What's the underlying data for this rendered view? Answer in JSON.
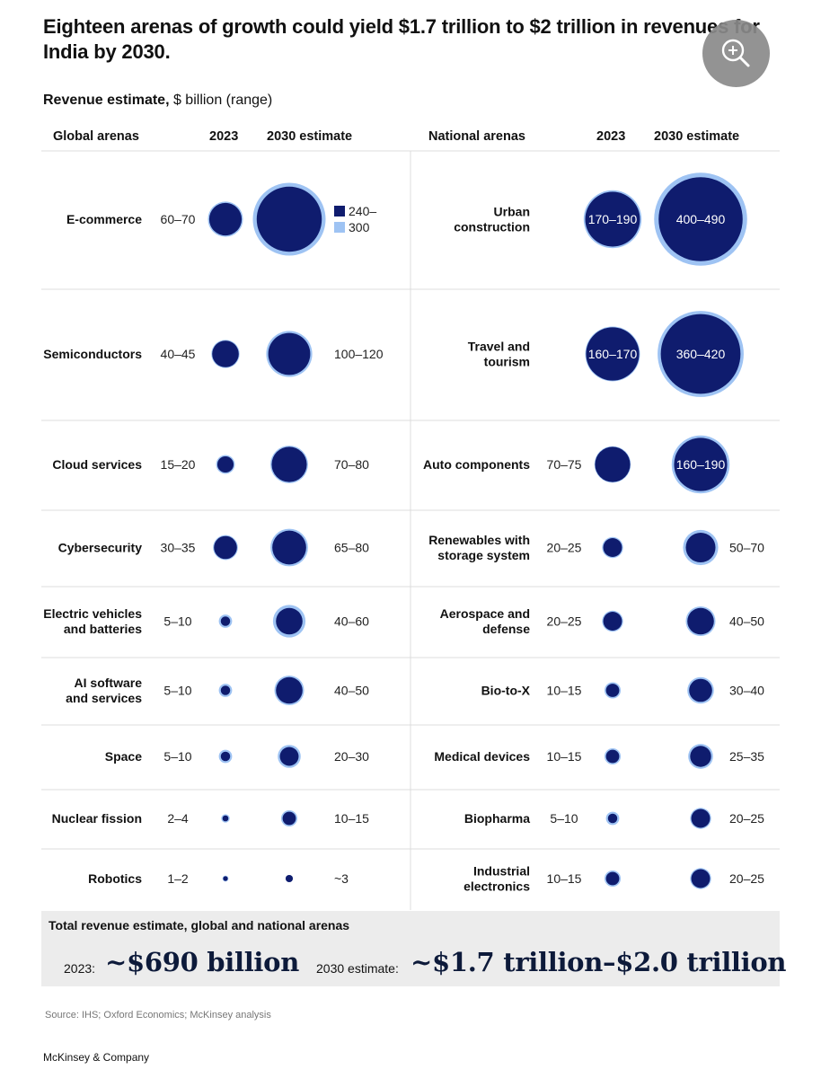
{
  "title": "Eighteen arenas of growth could yield $1.7 trillion to $2 trillion in revenues for India by 2030.",
  "subtitle_bold": "Revenue estimate,",
  "subtitle_rest": " $ billion (range)",
  "headers": {
    "global": "Global arenas",
    "national": "National arenas",
    "y2023": "2023",
    "y2030": "2030 estimate"
  },
  "colors": {
    "core": "#0f1c6e",
    "range": "#9ec3f3",
    "divider": "#dcdcdc"
  },
  "zoom_icon": "zoom-in-icon",
  "chart_data": {
    "type": "bubble-table",
    "title": "Eighteen arenas of growth could yield $1.7 trillion to $2 trillion in revenues for India by 2030.",
    "unit": "$ billion (range)",
    "legend": {
      "low": "240–",
      "high": "300"
    },
    "global": [
      {
        "name": "E-commerce",
        "v2023": "60–70",
        "v2030": "240–300",
        "r2023": [
          60,
          70
        ],
        "r2030": [
          240,
          300
        ]
      },
      {
        "name": "Semiconductors",
        "v2023": "40–45",
        "v2030": "100–120",
        "r2023": [
          40,
          45
        ],
        "r2030": [
          100,
          120
        ]
      },
      {
        "name": "Cloud services",
        "v2023": "15–20",
        "v2030": "70–80",
        "r2023": [
          15,
          20
        ],
        "r2030": [
          70,
          80
        ]
      },
      {
        "name": "Cybersecurity",
        "v2023": "30–35",
        "v2030": "65–80",
        "r2023": [
          30,
          35
        ],
        "r2030": [
          65,
          80
        ]
      },
      {
        "name": "Electric vehicles\nand batteries",
        "v2023": "5–10",
        "v2030": "40–60",
        "r2023": [
          5,
          10
        ],
        "r2030": [
          40,
          60
        ]
      },
      {
        "name": "AI software\nand services",
        "v2023": "5–10",
        "v2030": "40–50",
        "r2023": [
          5,
          10
        ],
        "r2030": [
          40,
          50
        ]
      },
      {
        "name": "Space",
        "v2023": "5–10",
        "v2030": "20–30",
        "r2023": [
          5,
          10
        ],
        "r2030": [
          20,
          30
        ]
      },
      {
        "name": "Nuclear fission",
        "v2023": "2–4",
        "v2030": "10–15",
        "r2023": [
          2,
          4
        ],
        "r2030": [
          10,
          15
        ]
      },
      {
        "name": "Robotics",
        "v2023": "1–2",
        "v2030": "~3",
        "r2023": [
          1,
          2
        ],
        "r2030": [
          3,
          3
        ]
      }
    ],
    "national": [
      {
        "name": "Urban\nconstruction",
        "v2023": "170–190",
        "v2030": "400–490",
        "r2023": [
          170,
          190
        ],
        "r2030": [
          400,
          490
        ]
      },
      {
        "name": "Travel and\ntourism",
        "v2023": "160–170",
        "v2030": "360–420",
        "r2023": [
          160,
          170
        ],
        "r2030": [
          360,
          420
        ]
      },
      {
        "name": "Auto components",
        "v2023": "70–75",
        "v2030": "160–190",
        "r2023": [
          70,
          75
        ],
        "r2030": [
          160,
          190
        ]
      },
      {
        "name": "Renewables with\nstorage system",
        "v2023": "20–25",
        "v2030": "50–70",
        "r2023": [
          20,
          25
        ],
        "r2030": [
          50,
          70
        ]
      },
      {
        "name": "Aerospace and\ndefense",
        "v2023": "20–25",
        "v2030": "40–50",
        "r2023": [
          20,
          25
        ],
        "r2030": [
          40,
          50
        ]
      },
      {
        "name": "Bio-to-X",
        "v2023": "10–15",
        "v2030": "30–40",
        "r2023": [
          10,
          15
        ],
        "r2030": [
          30,
          40
        ]
      },
      {
        "name": "Medical devices",
        "v2023": "10–15",
        "v2030": "25–35",
        "r2023": [
          10,
          15
        ],
        "r2030": [
          25,
          35
        ]
      },
      {
        "name": "Biopharma",
        "v2023": "5–10",
        "v2030": "20–25",
        "r2023": [
          5,
          10
        ],
        "r2030": [
          20,
          25
        ]
      },
      {
        "name": "Industrial\nelectronics",
        "v2023": "10–15",
        "v2030": "20–25",
        "r2023": [
          10,
          15
        ],
        "r2030": [
          20,
          25
        ]
      }
    ]
  },
  "total": {
    "label": "Total revenue estimate, global and national arenas",
    "pre2023": "2023:",
    "val2023": "~$690 billion",
    "pre2030": "2030 estimate:",
    "val2030": "~$1.7 trillion–$2.0 trillion"
  },
  "source": "Source: IHS; Oxford Economics; McKinsey analysis",
  "brand": "McKinsey & Company"
}
